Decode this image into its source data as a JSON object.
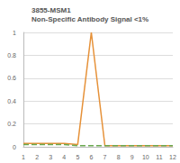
{
  "chart_data": {
    "type": "line",
    "title": "3855-MSM1",
    "subtitle": "Non-Specific Antibody Signal <1%",
    "categories": [
      "1",
      "2",
      "3",
      "4",
      "5",
      "6",
      "7",
      "8",
      "9",
      "10",
      "11",
      "12"
    ],
    "series": [
      {
        "color": "#e69138",
        "line_style": "solid",
        "values": [
          0.03,
          0.03,
          0.03,
          0.03,
          0.02,
          1,
          0.01,
          0.01,
          0.01,
          0.01,
          0.01,
          0.01
        ]
      },
      {
        "color": "#6aa84f",
        "line_style": "dashed",
        "values": [
          0.02,
          0.02,
          0.02,
          0.02,
          0.01,
          0.01,
          0.01,
          0.01,
          0.01,
          0.01,
          0.01,
          0.01
        ]
      }
    ],
    "ylim": [
      0,
      1
    ],
    "yticks": [
      0,
      0.2,
      0.4,
      0.6,
      0.8,
      1
    ],
    "grid": true
  }
}
